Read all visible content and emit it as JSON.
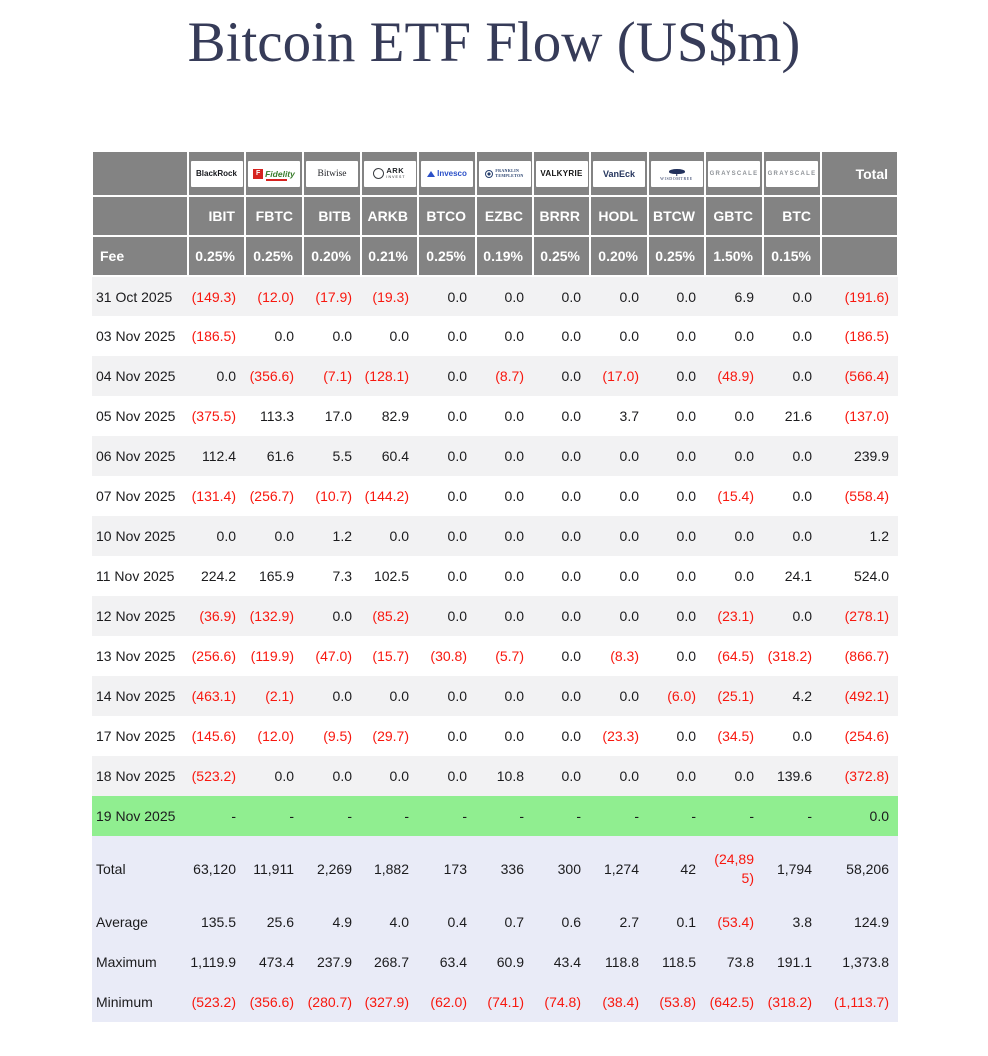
{
  "colors": {
    "header_bg": "#838383",
    "row_alt": "#f2f2f3",
    "highlight_green": "#90ee90",
    "summary_bg": "#e9ebf7",
    "negative_red": "#f8170e",
    "title_color": "#363b58"
  },
  "logos": [
    {
      "slug": "blackrock",
      "issuer": "BlackRock",
      "text": "BlackRock"
    },
    {
      "slug": "fidelity",
      "issuer": "Fidelity",
      "icon": "F",
      "text": "Fidelity"
    },
    {
      "slug": "bitwise",
      "issuer": "Bitwise",
      "text": "Bitwise"
    },
    {
      "slug": "ark",
      "issuer": "ARK Invest",
      "text": "ARK",
      "sub": "INVEST"
    },
    {
      "slug": "invesco",
      "issuer": "Invesco",
      "text": "Invesco"
    },
    {
      "slug": "franklin",
      "issuer": "Franklin Templeton",
      "text": "FRANKLIN",
      "sub": "TEMPLETON"
    },
    {
      "slug": "valkyrie",
      "issuer": "Valkyrie",
      "text": "VALKYRIE"
    },
    {
      "slug": "vaneck",
      "issuer": "VanEck",
      "text": "VanEck"
    },
    {
      "slug": "wisdomtree",
      "issuer": "WisdomTree",
      "text": "WISDOMTREE"
    },
    {
      "slug": "grayscale",
      "issuer": "Grayscale",
      "text": "GRAYSCALE"
    },
    {
      "slug": "grayscale",
      "issuer": "Grayscale",
      "text": "GRAYSCALE"
    }
  ],
  "chart_data": {
    "type": "table",
    "title": "Bitcoin ETF Flow (US$m)",
    "columns": [
      "IBIT",
      "FBTC",
      "BITB",
      "ARKB",
      "BTCO",
      "EZBC",
      "BRRR",
      "HODL",
      "BTCW",
      "GBTC",
      "BTC"
    ],
    "total_column": "Total",
    "fee_row_label": "Fee",
    "fees": [
      "0.25%",
      "0.25%",
      "0.20%",
      "0.21%",
      "0.25%",
      "0.19%",
      "0.25%",
      "0.20%",
      "0.25%",
      "1.50%",
      "0.15%"
    ],
    "rows": [
      {
        "date": "31 Oct 2025",
        "values": [
          "(149.3)",
          "(12.0)",
          "(17.9)",
          "(19.3)",
          "0.0",
          "0.0",
          "0.0",
          "0.0",
          "0.0",
          "6.9",
          "0.0"
        ],
        "total": "(191.6)"
      },
      {
        "date": "03 Nov 2025",
        "values": [
          "(186.5)",
          "0.0",
          "0.0",
          "0.0",
          "0.0",
          "0.0",
          "0.0",
          "0.0",
          "0.0",
          "0.0",
          "0.0"
        ],
        "total": "(186.5)"
      },
      {
        "date": "04 Nov 2025",
        "values": [
          "0.0",
          "(356.6)",
          "(7.1)",
          "(128.1)",
          "0.0",
          "(8.7)",
          "0.0",
          "(17.0)",
          "0.0",
          "(48.9)",
          "0.0"
        ],
        "total": "(566.4)"
      },
      {
        "date": "05 Nov 2025",
        "values": [
          "(375.5)",
          "113.3",
          "17.0",
          "82.9",
          "0.0",
          "0.0",
          "0.0",
          "3.7",
          "0.0",
          "0.0",
          "21.6"
        ],
        "total": "(137.0)"
      },
      {
        "date": "06 Nov 2025",
        "values": [
          "112.4",
          "61.6",
          "5.5",
          "60.4",
          "0.0",
          "0.0",
          "0.0",
          "0.0",
          "0.0",
          "0.0",
          "0.0"
        ],
        "total": "239.9"
      },
      {
        "date": "07 Nov 2025",
        "values": [
          "(131.4)",
          "(256.7)",
          "(10.7)",
          "(144.2)",
          "0.0",
          "0.0",
          "0.0",
          "0.0",
          "0.0",
          "(15.4)",
          "0.0"
        ],
        "total": "(558.4)"
      },
      {
        "date": "10 Nov 2025",
        "values": [
          "0.0",
          "0.0",
          "1.2",
          "0.0",
          "0.0",
          "0.0",
          "0.0",
          "0.0",
          "0.0",
          "0.0",
          "0.0"
        ],
        "total": "1.2"
      },
      {
        "date": "11 Nov 2025",
        "values": [
          "224.2",
          "165.9",
          "7.3",
          "102.5",
          "0.0",
          "0.0",
          "0.0",
          "0.0",
          "0.0",
          "0.0",
          "24.1"
        ],
        "total": "524.0"
      },
      {
        "date": "12 Nov 2025",
        "values": [
          "(36.9)",
          "(132.9)",
          "0.0",
          "(85.2)",
          "0.0",
          "0.0",
          "0.0",
          "0.0",
          "0.0",
          "(23.1)",
          "0.0"
        ],
        "total": "(278.1)"
      },
      {
        "date": "13 Nov 2025",
        "values": [
          "(256.6)",
          "(119.9)",
          "(47.0)",
          "(15.7)",
          "(30.8)",
          "(5.7)",
          "0.0",
          "(8.3)",
          "0.0",
          "(64.5)",
          "(318.2)"
        ],
        "total": "(866.7)"
      },
      {
        "date": "14 Nov 2025",
        "values": [
          "(463.1)",
          "(2.1)",
          "0.0",
          "0.0",
          "0.0",
          "0.0",
          "0.0",
          "0.0",
          "(6.0)",
          "(25.1)",
          "4.2"
        ],
        "total": "(492.1)"
      },
      {
        "date": "17 Nov 2025",
        "values": [
          "(145.6)",
          "(12.0)",
          "(9.5)",
          "(29.7)",
          "0.0",
          "0.0",
          "0.0",
          "(23.3)",
          "0.0",
          "(34.5)",
          "0.0"
        ],
        "total": "(254.6)"
      },
      {
        "date": "18 Nov 2025",
        "values": [
          "(523.2)",
          "0.0",
          "0.0",
          "0.0",
          "0.0",
          "10.8",
          "0.0",
          "0.0",
          "0.0",
          "0.0",
          "139.6"
        ],
        "total": "(372.8)"
      },
      {
        "date": "19 Nov 2025",
        "values": [
          "-",
          "-",
          "-",
          "-",
          "-",
          "-",
          "-",
          "-",
          "-",
          "-",
          "-"
        ],
        "total": "0.0",
        "highlight": true
      }
    ],
    "summary_rows": [
      {
        "label": "Total",
        "values": [
          "63,120",
          "11,911",
          "2,269",
          "1,882",
          "173",
          "336",
          "300",
          "1,274",
          "42",
          "(24,895)",
          "1,794"
        ],
        "total": "58,206"
      },
      {
        "label": "Average",
        "values": [
          "135.5",
          "25.6",
          "4.9",
          "4.0",
          "0.4",
          "0.7",
          "0.6",
          "2.7",
          "0.1",
          "(53.4)",
          "3.8"
        ],
        "total": "124.9"
      },
      {
        "label": "Maximum",
        "values": [
          "1,119.9",
          "473.4",
          "237.9",
          "268.7",
          "63.4",
          "60.9",
          "43.4",
          "118.8",
          "118.5",
          "73.8",
          "191.1"
        ],
        "total": "1,373.8"
      },
      {
        "label": "Minimum",
        "values": [
          "(523.2)",
          "(356.6)",
          "(280.7)",
          "(327.9)",
          "(62.0)",
          "(74.1)",
          "(74.8)",
          "(38.4)",
          "(53.8)",
          "(642.5)",
          "(318.2)"
        ],
        "total": "(1,113.7)"
      }
    ]
  }
}
